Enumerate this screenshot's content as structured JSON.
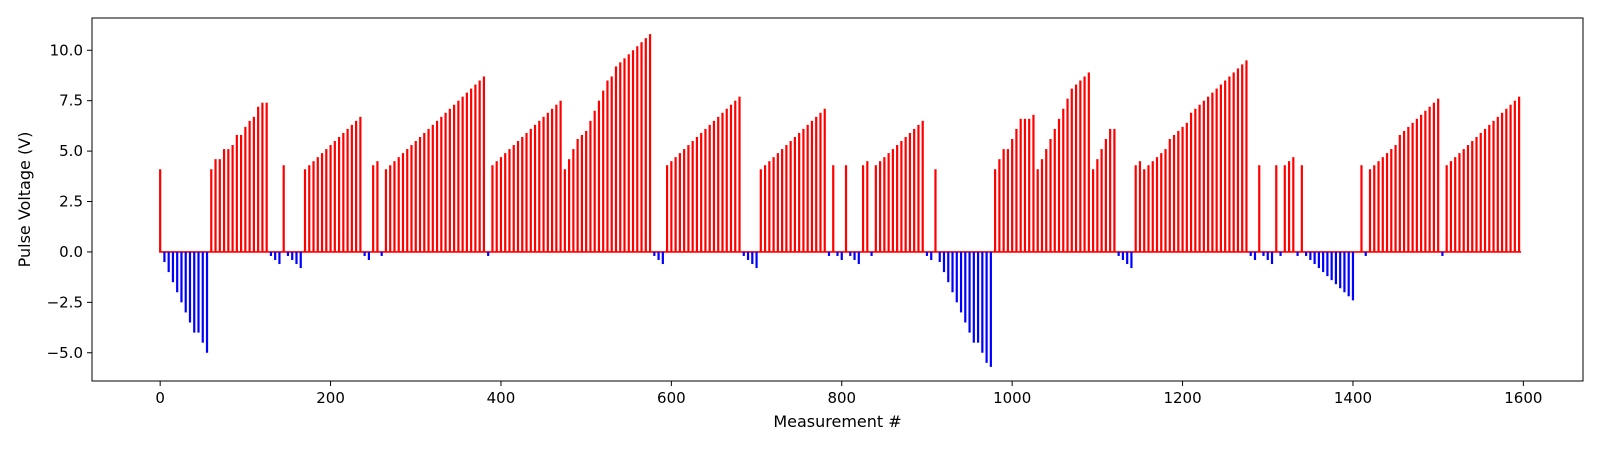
{
  "chart_data": {
    "type": "bar",
    "xlabel": "Measurement #",
    "ylabel": "Pulse Voltage (V)",
    "xlim": [
      -80,
      1670
    ],
    "ylim": [
      -6.4,
      11.6
    ],
    "x_ticks": [
      0,
      200,
      400,
      600,
      800,
      1000,
      1200,
      1400,
      1600
    ],
    "y_ticks": [
      -5.0,
      -2.5,
      0.0,
      2.5,
      5.0,
      7.5,
      10.0
    ],
    "x_tick_labels": [
      "0",
      "200",
      "400",
      "600",
      "800",
      "1000",
      "1200",
      "1400",
      "1600"
    ],
    "y_tick_labels": [
      "−5.0",
      "−2.5",
      "0.0",
      "2.5",
      "5.0",
      "7.5",
      "10.0"
    ],
    "grid": false,
    "colors": {
      "positive": "#ff0000",
      "negative": "#0000ff",
      "axes": "#000000"
    },
    "series": [
      {
        "color": "#ff0000",
        "points": [
          [
            0,
            4.1
          ],
          [
            60,
            4.1
          ],
          [
            65,
            4.6
          ],
          [
            70,
            4.6
          ],
          [
            75,
            5.1
          ],
          [
            80,
            5.1
          ],
          [
            85,
            5.3
          ],
          [
            90,
            5.8
          ],
          [
            95,
            5.8
          ],
          [
            100,
            6.2
          ],
          [
            105,
            6.5
          ],
          [
            110,
            6.7
          ],
          [
            115,
            7.2
          ],
          [
            120,
            7.4
          ],
          [
            125,
            7.4
          ],
          [
            145,
            4.3
          ],
          [
            170,
            4.1
          ],
          [
            175,
            4.3
          ],
          [
            180,
            4.5
          ],
          [
            185,
            4.7
          ],
          [
            190,
            4.9
          ],
          [
            195,
            5.1
          ],
          [
            200,
            5.3
          ],
          [
            205,
            5.5
          ],
          [
            210,
            5.7
          ],
          [
            215,
            5.9
          ],
          [
            220,
            6.1
          ],
          [
            225,
            6.3
          ],
          [
            230,
            6.5
          ],
          [
            235,
            6.7
          ],
          [
            250,
            4.3
          ],
          [
            255,
            4.5
          ],
          [
            265,
            4.1
          ],
          [
            270,
            4.3
          ],
          [
            275,
            4.5
          ],
          [
            280,
            4.7
          ],
          [
            285,
            4.9
          ],
          [
            290,
            5.1
          ],
          [
            295,
            5.3
          ],
          [
            300,
            5.5
          ],
          [
            305,
            5.7
          ],
          [
            310,
            5.9
          ],
          [
            315,
            6.1
          ],
          [
            320,
            6.3
          ],
          [
            325,
            6.5
          ],
          [
            330,
            6.7
          ],
          [
            335,
            6.9
          ],
          [
            340,
            7.1
          ],
          [
            345,
            7.3
          ],
          [
            350,
            7.5
          ],
          [
            355,
            7.7
          ],
          [
            360,
            7.9
          ],
          [
            365,
            8.1
          ],
          [
            370,
            8.3
          ],
          [
            375,
            8.5
          ],
          [
            380,
            8.7
          ],
          [
            390,
            4.3
          ],
          [
            395,
            4.5
          ],
          [
            400,
            4.7
          ],
          [
            405,
            4.9
          ],
          [
            410,
            5.1
          ],
          [
            415,
            5.3
          ],
          [
            420,
            5.5
          ],
          [
            425,
            5.7
          ],
          [
            430,
            5.9
          ],
          [
            435,
            6.1
          ],
          [
            440,
            6.3
          ],
          [
            445,
            6.5
          ],
          [
            450,
            6.7
          ],
          [
            455,
            6.9
          ],
          [
            460,
            7.1
          ],
          [
            465,
            7.3
          ],
          [
            470,
            7.5
          ],
          [
            475,
            4.1
          ],
          [
            480,
            4.6
          ],
          [
            485,
            5.1
          ],
          [
            490,
            5.6
          ],
          [
            495,
            5.8
          ],
          [
            500,
            6.0
          ],
          [
            505,
            6.5
          ],
          [
            510,
            7.0
          ],
          [
            515,
            7.5
          ],
          [
            520,
            8.0
          ],
          [
            525,
            8.5
          ],
          [
            530,
            8.7
          ],
          [
            535,
            9.2
          ],
          [
            540,
            9.4
          ],
          [
            545,
            9.6
          ],
          [
            550,
            9.8
          ],
          [
            555,
            10.0
          ],
          [
            560,
            10.2
          ],
          [
            565,
            10.4
          ],
          [
            570,
            10.6
          ],
          [
            575,
            10.8
          ],
          [
            595,
            4.3
          ],
          [
            600,
            4.5
          ],
          [
            605,
            4.7
          ],
          [
            610,
            4.9
          ],
          [
            615,
            5.1
          ],
          [
            620,
            5.3
          ],
          [
            625,
            5.5
          ],
          [
            630,
            5.7
          ],
          [
            635,
            5.9
          ],
          [
            640,
            6.1
          ],
          [
            645,
            6.3
          ],
          [
            650,
            6.5
          ],
          [
            655,
            6.7
          ],
          [
            660,
            6.9
          ],
          [
            665,
            7.1
          ],
          [
            670,
            7.3
          ],
          [
            675,
            7.5
          ],
          [
            680,
            7.7
          ],
          [
            705,
            4.1
          ],
          [
            710,
            4.3
          ],
          [
            715,
            4.5
          ],
          [
            720,
            4.7
          ],
          [
            725,
            4.9
          ],
          [
            730,
            5.1
          ],
          [
            735,
            5.3
          ],
          [
            740,
            5.5
          ],
          [
            745,
            5.7
          ],
          [
            750,
            5.9
          ],
          [
            755,
            6.1
          ],
          [
            760,
            6.3
          ],
          [
            765,
            6.5
          ],
          [
            770,
            6.7
          ],
          [
            775,
            6.9
          ],
          [
            780,
            7.1
          ],
          [
            790,
            4.3
          ],
          [
            805,
            4.3
          ],
          [
            825,
            4.3
          ],
          [
            830,
            4.5
          ],
          [
            840,
            4.3
          ],
          [
            845,
            4.5
          ],
          [
            850,
            4.7
          ],
          [
            855,
            4.9
          ],
          [
            860,
            5.1
          ],
          [
            865,
            5.3
          ],
          [
            870,
            5.5
          ],
          [
            875,
            5.7
          ],
          [
            880,
            5.9
          ],
          [
            885,
            6.1
          ],
          [
            890,
            6.3
          ],
          [
            895,
            6.5
          ],
          [
            910,
            4.1
          ],
          [
            980,
            4.1
          ],
          [
            985,
            4.6
          ],
          [
            990,
            5.1
          ],
          [
            995,
            5.1
          ],
          [
            1000,
            5.6
          ],
          [
            1005,
            6.1
          ],
          [
            1010,
            6.6
          ],
          [
            1015,
            6.6
          ],
          [
            1020,
            6.6
          ],
          [
            1025,
            6.8
          ],
          [
            1030,
            4.1
          ],
          [
            1035,
            4.6
          ],
          [
            1040,
            5.1
          ],
          [
            1045,
            5.6
          ],
          [
            1050,
            6.1
          ],
          [
            1055,
            6.6
          ],
          [
            1060,
            7.1
          ],
          [
            1065,
            7.6
          ],
          [
            1070,
            8.1
          ],
          [
            1075,
            8.3
          ],
          [
            1080,
            8.5
          ],
          [
            1085,
            8.7
          ],
          [
            1090,
            8.9
          ],
          [
            1095,
            4.1
          ],
          [
            1100,
            4.6
          ],
          [
            1105,
            5.1
          ],
          [
            1110,
            5.6
          ],
          [
            1115,
            6.1
          ],
          [
            1120,
            6.1
          ],
          [
            1145,
            4.3
          ],
          [
            1150,
            4.5
          ],
          [
            1155,
            4.1
          ],
          [
            1160,
            4.3
          ],
          [
            1165,
            4.5
          ],
          [
            1170,
            4.7
          ],
          [
            1175,
            4.9
          ],
          [
            1180,
            5.1
          ],
          [
            1185,
            5.6
          ],
          [
            1190,
            5.8
          ],
          [
            1195,
            6.0
          ],
          [
            1200,
            6.2
          ],
          [
            1205,
            6.4
          ],
          [
            1210,
            6.9
          ],
          [
            1215,
            7.1
          ],
          [
            1220,
            7.3
          ],
          [
            1225,
            7.5
          ],
          [
            1230,
            7.7
          ],
          [
            1235,
            7.9
          ],
          [
            1240,
            8.1
          ],
          [
            1245,
            8.3
          ],
          [
            1250,
            8.5
          ],
          [
            1255,
            8.7
          ],
          [
            1260,
            8.9
          ],
          [
            1265,
            9.1
          ],
          [
            1270,
            9.3
          ],
          [
            1275,
            9.5
          ],
          [
            1290,
            4.3
          ],
          [
            1310,
            4.3
          ],
          [
            1320,
            4.3
          ],
          [
            1325,
            4.5
          ],
          [
            1330,
            4.7
          ],
          [
            1340,
            4.3
          ],
          [
            1410,
            4.3
          ],
          [
            1420,
            4.1
          ],
          [
            1425,
            4.3
          ],
          [
            1430,
            4.5
          ],
          [
            1435,
            4.7
          ],
          [
            1440,
            4.9
          ],
          [
            1445,
            5.1
          ],
          [
            1450,
            5.3
          ],
          [
            1455,
            5.8
          ],
          [
            1460,
            6.0
          ],
          [
            1465,
            6.2
          ],
          [
            1470,
            6.4
          ],
          [
            1475,
            6.6
          ],
          [
            1480,
            6.8
          ],
          [
            1485,
            7.0
          ],
          [
            1490,
            7.2
          ],
          [
            1495,
            7.4
          ],
          [
            1500,
            7.6
          ],
          [
            1510,
            4.3
          ],
          [
            1515,
            4.5
          ],
          [
            1520,
            4.7
          ],
          [
            1525,
            4.9
          ],
          [
            1530,
            5.1
          ],
          [
            1535,
            5.3
          ],
          [
            1540,
            5.5
          ],
          [
            1545,
            5.7
          ],
          [
            1550,
            5.9
          ],
          [
            1555,
            6.1
          ],
          [
            1560,
            6.3
          ],
          [
            1565,
            6.5
          ],
          [
            1570,
            6.7
          ],
          [
            1575,
            6.9
          ],
          [
            1580,
            7.1
          ],
          [
            1585,
            7.3
          ],
          [
            1590,
            7.5
          ],
          [
            1595,
            7.7
          ]
        ]
      },
      {
        "color": "#0000ff",
        "points": [
          [
            5,
            -0.5
          ],
          [
            10,
            -1.0
          ],
          [
            15,
            -1.5
          ],
          [
            20,
            -2.0
          ],
          [
            25,
            -2.5
          ],
          [
            30,
            -3.0
          ],
          [
            35,
            -3.5
          ],
          [
            40,
            -4.0
          ],
          [
            45,
            -4.0
          ],
          [
            50,
            -4.5
          ],
          [
            55,
            -5.0
          ],
          [
            130,
            -0.2
          ],
          [
            135,
            -0.4
          ],
          [
            140,
            -0.6
          ],
          [
            150,
            -0.2
          ],
          [
            155,
            -0.4
          ],
          [
            160,
            -0.6
          ],
          [
            165,
            -0.8
          ],
          [
            240,
            -0.2
          ],
          [
            245,
            -0.4
          ],
          [
            260,
            -0.2
          ],
          [
            385,
            -0.2
          ],
          [
            580,
            -0.2
          ],
          [
            585,
            -0.4
          ],
          [
            590,
            -0.6
          ],
          [
            685,
            -0.2
          ],
          [
            690,
            -0.4
          ],
          [
            695,
            -0.6
          ],
          [
            700,
            -0.8
          ],
          [
            785,
            -0.2
          ],
          [
            795,
            -0.2
          ],
          [
            800,
            -0.4
          ],
          [
            810,
            -0.2
          ],
          [
            815,
            -0.4
          ],
          [
            820,
            -0.6
          ],
          [
            835,
            -0.2
          ],
          [
            900,
            -0.2
          ],
          [
            905,
            -0.4
          ],
          [
            915,
            -0.5
          ],
          [
            920,
            -1.0
          ],
          [
            925,
            -1.5
          ],
          [
            930,
            -2.0
          ],
          [
            935,
            -2.5
          ],
          [
            940,
            -3.0
          ],
          [
            945,
            -3.5
          ],
          [
            950,
            -4.0
          ],
          [
            955,
            -4.5
          ],
          [
            960,
            -4.5
          ],
          [
            965,
            -5.0
          ],
          [
            970,
            -5.5
          ],
          [
            975,
            -5.7
          ],
          [
            1125,
            -0.2
          ],
          [
            1130,
            -0.4
          ],
          [
            1135,
            -0.6
          ],
          [
            1140,
            -0.8
          ],
          [
            1280,
            -0.2
          ],
          [
            1285,
            -0.4
          ],
          [
            1295,
            -0.2
          ],
          [
            1300,
            -0.4
          ],
          [
            1305,
            -0.6
          ],
          [
            1315,
            -0.2
          ],
          [
            1335,
            -0.2
          ],
          [
            1345,
            -0.2
          ],
          [
            1350,
            -0.4
          ],
          [
            1355,
            -0.6
          ],
          [
            1360,
            -0.8
          ],
          [
            1365,
            -1.0
          ],
          [
            1370,
            -1.2
          ],
          [
            1375,
            -1.4
          ],
          [
            1380,
            -1.6
          ],
          [
            1385,
            -1.8
          ],
          [
            1390,
            -2.0
          ],
          [
            1395,
            -2.2
          ],
          [
            1400,
            -2.4
          ],
          [
            1415,
            -0.2
          ],
          [
            1505,
            -0.2
          ]
        ]
      }
    ]
  }
}
